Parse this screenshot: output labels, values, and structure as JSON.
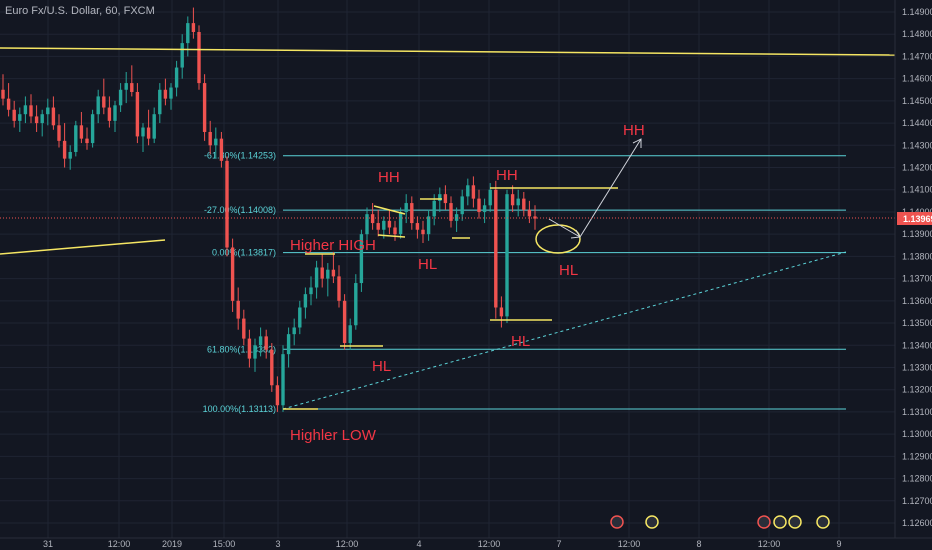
{
  "window": {
    "title": "Euro Fx/U.S. Dollar, 60, FXCM"
  },
  "colors": {
    "background": "#131722",
    "grid": "#1f2433",
    "up": "#26a69a",
    "down": "#ef5350",
    "annotation": "#f23645",
    "fib": "#5bd3d8",
    "trendline": "#f5e663",
    "white_line": "#d1d4dc",
    "price_tag_bg": "#ef5350"
  },
  "chart_data": {
    "type": "candlestick",
    "title": "Euro Fx/U.S. Dollar, 60, FXCM",
    "ylim": [
      1.1255,
      1.1495
    ],
    "y_ticks": [
      "1.14900",
      "1.14800",
      "1.14700",
      "1.14600",
      "1.14500",
      "1.14400",
      "1.14300",
      "1.14200",
      "1.14100",
      "1.14000",
      "1.13900",
      "1.13800",
      "1.13700",
      "1.13600",
      "1.13500",
      "1.13400",
      "1.13300",
      "1.13200",
      "1.13100",
      "1.13000",
      "1.12900",
      "1.12800",
      "1.12700",
      "1.12600"
    ],
    "x_ticks": [
      "31",
      "12:00",
      "2019",
      "15:00",
      "3",
      "12:00",
      "4",
      "12:00",
      "7",
      "12:00",
      "8",
      "12:00",
      "9"
    ],
    "current_price": {
      "value": 1.13969,
      "label": "1.13969"
    },
    "fib_levels": [
      {
        "label": "-61.80%(1.14253)",
        "value": 1.14253
      },
      {
        "label": "-27.00%(1.14008)",
        "value": 1.14008
      },
      {
        "label": "0.00%(1.13817)",
        "value": 1.13817
      },
      {
        "label": "61.80%(1.13382)",
        "value": 1.13382
      },
      {
        "label": "100.00%(1.13113)",
        "value": 1.13113
      }
    ],
    "candles": [
      [
        1.1455,
        1.1462,
        1.1448,
        1.1451
      ],
      [
        1.1451,
        1.1458,
        1.1443,
        1.1446
      ],
      [
        1.1446,
        1.145,
        1.1438,
        1.1441
      ],
      [
        1.1441,
        1.1447,
        1.1436,
        1.1444
      ],
      [
        1.1444,
        1.1452,
        1.144,
        1.1448
      ],
      [
        1.1448,
        1.1453,
        1.144,
        1.1443
      ],
      [
        1.1443,
        1.1448,
        1.1436,
        1.144
      ],
      [
        1.144,
        1.1446,
        1.1434,
        1.1444
      ],
      [
        1.1444,
        1.1451,
        1.1439,
        1.1447
      ],
      [
        1.1447,
        1.1452,
        1.1437,
        1.1439
      ],
      [
        1.1439,
        1.1444,
        1.1429,
        1.1432
      ],
      [
        1.1432,
        1.144,
        1.142,
        1.1424
      ],
      [
        1.1424,
        1.143,
        1.1419,
        1.1427
      ],
      [
        1.1427,
        1.1441,
        1.1425,
        1.1439
      ],
      [
        1.1439,
        1.1445,
        1.1431,
        1.1433
      ],
      [
        1.1433,
        1.1438,
        1.1428,
        1.1431
      ],
      [
        1.1431,
        1.1446,
        1.1429,
        1.1444
      ],
      [
        1.1444,
        1.1455,
        1.144,
        1.1452
      ],
      [
        1.1452,
        1.146,
        1.1444,
        1.1447
      ],
      [
        1.1447,
        1.1452,
        1.1438,
        1.1441
      ],
      [
        1.1441,
        1.145,
        1.1436,
        1.1448
      ],
      [
        1.1448,
        1.1458,
        1.1445,
        1.1455
      ],
      [
        1.1455,
        1.1463,
        1.1449,
        1.1458
      ],
      [
        1.1458,
        1.1466,
        1.1452,
        1.1454
      ],
      [
        1.1454,
        1.1458,
        1.1431,
        1.1434
      ],
      [
        1.1434,
        1.144,
        1.1427,
        1.1438
      ],
      [
        1.1438,
        1.1446,
        1.143,
        1.1433
      ],
      [
        1.1433,
        1.1447,
        1.1431,
        1.1444
      ],
      [
        1.1444,
        1.1458,
        1.144,
        1.1455
      ],
      [
        1.1455,
        1.146,
        1.1448,
        1.1451
      ],
      [
        1.1451,
        1.1458,
        1.1446,
        1.1456
      ],
      [
        1.1456,
        1.1468,
        1.1452,
        1.1465
      ],
      [
        1.1465,
        1.148,
        1.146,
        1.1476
      ],
      [
        1.1476,
        1.1488,
        1.147,
        1.1485
      ],
      [
        1.1485,
        1.1492,
        1.1478,
        1.1481
      ],
      [
        1.1481,
        1.1484,
        1.1455,
        1.1458
      ],
      [
        1.1458,
        1.1462,
        1.1432,
        1.1436
      ],
      [
        1.1436,
        1.1441,
        1.1426,
        1.143
      ],
      [
        1.143,
        1.1438,
        1.1424,
        1.1433
      ],
      [
        1.1433,
        1.1436,
        1.142,
        1.1423
      ],
      [
        1.1423,
        1.1425,
        1.138,
        1.1384
      ],
      [
        1.1384,
        1.1388,
        1.1355,
        1.136
      ],
      [
        1.136,
        1.1366,
        1.1347,
        1.1352
      ],
      [
        1.1352,
        1.1356,
        1.134,
        1.1343
      ],
      [
        1.1343,
        1.1347,
        1.133,
        1.1334
      ],
      [
        1.1334,
        1.1343,
        1.1328,
        1.134
      ],
      [
        1.134,
        1.1348,
        1.1335,
        1.1344
      ],
      [
        1.1344,
        1.1347,
        1.1334,
        1.1338
      ],
      [
        1.1338,
        1.1341,
        1.1319,
        1.1322
      ],
      [
        1.1322,
        1.1326,
        1.131,
        1.1313
      ],
      [
        1.1313,
        1.134,
        1.131,
        1.1336
      ],
      [
        1.1336,
        1.1348,
        1.133,
        1.1345
      ],
      [
        1.1345,
        1.1352,
        1.134,
        1.1348
      ],
      [
        1.1348,
        1.136,
        1.1345,
        1.1357
      ],
      [
        1.1357,
        1.1366,
        1.1352,
        1.1363
      ],
      [
        1.1363,
        1.1371,
        1.1358,
        1.1366
      ],
      [
        1.1366,
        1.1378,
        1.1361,
        1.1375
      ],
      [
        1.1375,
        1.1381,
        1.1366,
        1.137
      ],
      [
        1.137,
        1.1377,
        1.1362,
        1.1374
      ],
      [
        1.1374,
        1.1382,
        1.1368,
        1.1371
      ],
      [
        1.1371,
        1.1376,
        1.1357,
        1.136
      ],
      [
        1.136,
        1.1363,
        1.1338,
        1.1341
      ],
      [
        1.1341,
        1.1352,
        1.1338,
        1.1349
      ],
      [
        1.1349,
        1.1372,
        1.1347,
        1.1368
      ],
      [
        1.1368,
        1.1392,
        1.1364,
        1.139
      ],
      [
        1.139,
        1.1402,
        1.1386,
        1.1399
      ],
      [
        1.1399,
        1.1404,
        1.1392,
        1.1395
      ],
      [
        1.1395,
        1.1401,
        1.1389,
        1.1392
      ],
      [
        1.1392,
        1.1398,
        1.1388,
        1.1396
      ],
      [
        1.1396,
        1.1401,
        1.139,
        1.1393
      ],
      [
        1.1393,
        1.1396,
        1.1387,
        1.139
      ],
      [
        1.139,
        1.1402,
        1.1388,
        1.14
      ],
      [
        1.14,
        1.1408,
        1.1395,
        1.1404
      ],
      [
        1.1404,
        1.1407,
        1.1392,
        1.1395
      ],
      [
        1.1395,
        1.1398,
        1.1388,
        1.1392
      ],
      [
        1.1392,
        1.1396,
        1.1386,
        1.139
      ],
      [
        1.139,
        1.1401,
        1.1387,
        1.1398
      ],
      [
        1.1398,
        1.1408,
        1.1394,
        1.1405
      ],
      [
        1.1405,
        1.1411,
        1.14,
        1.1408
      ],
      [
        1.1408,
        1.1412,
        1.1401,
        1.1404
      ],
      [
        1.1404,
        1.1407,
        1.1393,
        1.1396
      ],
      [
        1.1396,
        1.1402,
        1.1391,
        1.1399
      ],
      [
        1.1399,
        1.141,
        1.1396,
        1.1407
      ],
      [
        1.1407,
        1.1415,
        1.1403,
        1.1412
      ],
      [
        1.1412,
        1.1416,
        1.1402,
        1.1406
      ],
      [
        1.1406,
        1.141,
        1.1397,
        1.14
      ],
      [
        1.14,
        1.1406,
        1.1395,
        1.1403
      ],
      [
        1.1403,
        1.1413,
        1.14,
        1.141
      ],
      [
        1.141,
        1.1414,
        1.1352,
        1.1357
      ],
      [
        1.1357,
        1.1362,
        1.1348,
        1.1353
      ],
      [
        1.1353,
        1.141,
        1.135,
        1.1408
      ],
      [
        1.1408,
        1.1412,
        1.14,
        1.1403
      ],
      [
        1.1403,
        1.141,
        1.1398,
        1.1406
      ],
      [
        1.1406,
        1.1409,
        1.1398,
        1.1401
      ],
      [
        1.1401,
        1.1405,
        1.1395,
        1.1398
      ],
      [
        1.1398,
        1.1403,
        1.1392,
        1.1397
      ]
    ],
    "annotations": [
      {
        "text": "HH",
        "x": 378,
        "y": 182
      },
      {
        "text": "HH",
        "x": 496,
        "y": 180
      },
      {
        "text": "HH",
        "x": 623,
        "y": 135
      },
      {
        "text": "Higher HIGH",
        "x": 290,
        "y": 250
      },
      {
        "text": "HL",
        "x": 418,
        "y": 269
      },
      {
        "text": "HL",
        "x": 559,
        "y": 275
      },
      {
        "text": "HL",
        "x": 372,
        "y": 371
      },
      {
        "text": "HL",
        "x": 511,
        "y": 346
      },
      {
        "text": "Highler LOW",
        "x": 290,
        "y": 440
      }
    ]
  }
}
